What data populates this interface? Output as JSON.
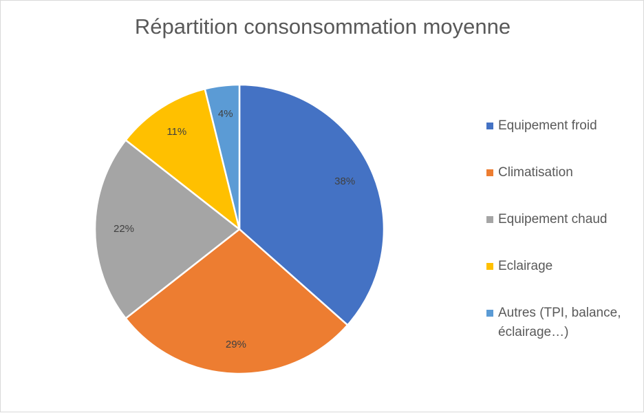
{
  "chart_data": {
    "type": "pie",
    "title": "Répartition consonsommation moyenne",
    "categories": [
      "Equipement froid",
      "Climatisation",
      "Equipement chaud",
      "Eclairage",
      "Autres (TPI, balance, éclairage…)"
    ],
    "values": [
      38,
      29,
      22,
      11,
      4
    ],
    "data_labels": [
      "38%",
      "29%",
      "22%",
      "11%",
      "4%"
    ],
    "colors": [
      "#4472C4",
      "#ED7D31",
      "#A5A5A5",
      "#FFC000",
      "#5B9BD5"
    ],
    "legend_position": "right",
    "start_angle": "top, clockwise"
  }
}
